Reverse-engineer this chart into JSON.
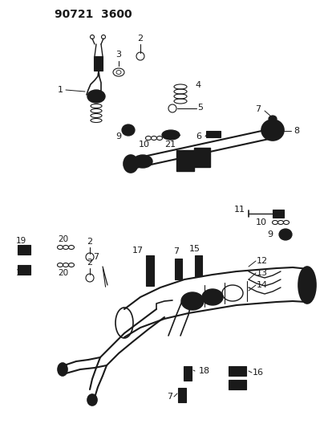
{
  "title": "90721 3600",
  "bg_color": "#ffffff",
  "line_color": "#1a1a1a",
  "fig_width": 4.04,
  "fig_height": 5.33,
  "dpi": 100
}
